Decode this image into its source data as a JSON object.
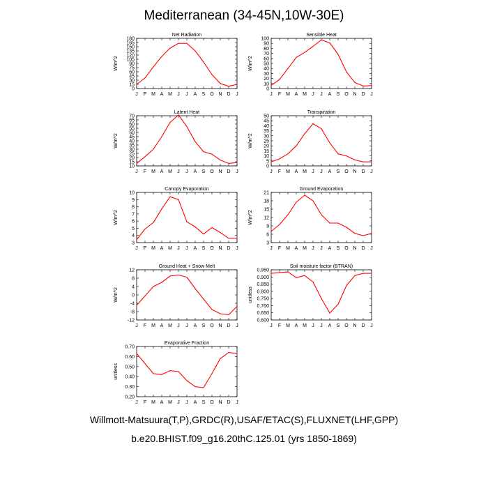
{
  "title": "Mediterranean (34-45N,10W-30E)",
  "footer": {
    "line1": "Willmott-Matsuura(T,P),GRDC(R),USAF/ETAC(S),FLUXNET(LHF,GPP)",
    "line2": "b.e20.BHIST.f09_g16.20thC.125.01 (yrs 1850-1869)"
  },
  "colors": {
    "series": "#ff0000",
    "axis": "#000000"
  },
  "chart_data": [
    {
      "type": "line",
      "title": "Net Radiation",
      "ylabel": "W/m^2",
      "categories": [
        "J",
        "F",
        "M",
        "A",
        "M",
        "J",
        "J",
        "A",
        "S",
        "O",
        "N",
        "D",
        "J"
      ],
      "ylim": [
        0,
        180
      ],
      "yticks": [
        0,
        15,
        30,
        45,
        60,
        75,
        90,
        105,
        120,
        135,
        150,
        165,
        180
      ],
      "ytick_labels": [
        "0",
        "15",
        "30",
        "45",
        "60",
        "75",
        "90",
        "105",
        "120",
        "135",
        "150",
        "165",
        "180"
      ],
      "values": [
        15,
        38,
        78,
        115,
        145,
        162,
        162,
        135,
        95,
        50,
        18,
        8,
        15
      ]
    },
    {
      "type": "line",
      "title": "Sensible Heat",
      "ylabel": "W/m^2",
      "categories": [
        "J",
        "F",
        "M",
        "A",
        "M",
        "J",
        "J",
        "A",
        "S",
        "O",
        "N",
        "D",
        "J"
      ],
      "ylim": [
        0,
        100
      ],
      "yticks": [
        0,
        10,
        20,
        30,
        40,
        50,
        60,
        70,
        80,
        90,
        100
      ],
      "ytick_labels": [
        "0",
        "10",
        "20",
        "30",
        "40",
        "50",
        "60",
        "70",
        "80",
        "90",
        "100"
      ],
      "values": [
        6,
        18,
        40,
        62,
        72,
        84,
        97,
        91,
        68,
        33,
        12,
        5,
        6
      ]
    },
    {
      "type": "line",
      "title": "Latent Heat",
      "ylabel": "W/m^2",
      "categories": [
        "J",
        "F",
        "M",
        "A",
        "M",
        "J",
        "J",
        "A",
        "S",
        "O",
        "N",
        "D",
        "J"
      ],
      "ylim": [
        10,
        70
      ],
      "yticks": [
        10,
        15,
        20,
        25,
        30,
        35,
        40,
        45,
        50,
        55,
        60,
        65,
        70
      ],
      "ytick_labels": [
        "10",
        "15",
        "20",
        "25",
        "30",
        "35",
        "40",
        "45",
        "50",
        "55",
        "60",
        "65",
        "70"
      ],
      "values": [
        13,
        21,
        30,
        45,
        62,
        71,
        57,
        39,
        27,
        24,
        17,
        13,
        14
      ]
    },
    {
      "type": "line",
      "title": "Transpiration",
      "ylabel": "W/m^2",
      "categories": [
        "J",
        "F",
        "M",
        "A",
        "M",
        "J",
        "J",
        "A",
        "S",
        "O",
        "N",
        "D",
        "J"
      ],
      "ylim": [
        0,
        50
      ],
      "yticks": [
        0,
        5,
        10,
        15,
        20,
        25,
        30,
        35,
        40,
        45,
        50
      ],
      "ytick_labels": [
        "0",
        "5",
        "10",
        "15",
        "20",
        "25",
        "30",
        "35",
        "40",
        "45",
        "50"
      ],
      "values": [
        4,
        7,
        12,
        20,
        32,
        42,
        37,
        23,
        12,
        10,
        6,
        4,
        4
      ]
    },
    {
      "type": "line",
      "title": "Canopy Evaporation",
      "ylabel": "W/m^2",
      "categories": [
        "J",
        "F",
        "M",
        "A",
        "M",
        "J",
        "J",
        "A",
        "S",
        "O",
        "N",
        "D",
        "J"
      ],
      "ylim": [
        3,
        10
      ],
      "yticks": [
        3,
        4,
        5,
        6,
        7,
        8,
        9,
        10
      ],
      "ytick_labels": [
        "3",
        "4",
        "5",
        "6",
        "7",
        "8",
        "9",
        "10"
      ],
      "values": [
        3.4,
        4.9,
        5.8,
        7.7,
        9.4,
        9.0,
        5.9,
        5.2,
        4.2,
        5.1,
        4.4,
        3.6,
        3.6
      ]
    },
    {
      "type": "line",
      "title": "Ground Evaporation",
      "ylabel": "W/m^2",
      "categories": [
        "J",
        "F",
        "M",
        "A",
        "M",
        "J",
        "J",
        "A",
        "S",
        "O",
        "N",
        "D",
        "J"
      ],
      "ylim": [
        3,
        21
      ],
      "yticks": [
        3,
        6,
        9,
        12,
        15,
        18,
        21
      ],
      "ytick_labels": [
        "3",
        "6",
        "9",
        "12",
        "15",
        "18",
        "21"
      ],
      "values": [
        7,
        9.5,
        13,
        17.5,
        20,
        18,
        13,
        10,
        10,
        8.5,
        6.3,
        5.5,
        6.3
      ]
    },
    {
      "type": "line",
      "title": "Ground Heat + Snow Melt",
      "ylabel": "W/m^2",
      "categories": [
        "J",
        "F",
        "M",
        "A",
        "M",
        "J",
        "J",
        "A",
        "S",
        "O",
        "N",
        "D",
        "J"
      ],
      "ylim": [
        -12,
        12
      ],
      "yticks": [
        -12,
        -8,
        -4,
        0,
        4,
        8,
        12
      ],
      "ytick_labels": [
        "-12",
        "-8",
        "-4",
        "0",
        "4",
        "8",
        "12"
      ],
      "values": [
        -5,
        -0.5,
        4,
        6,
        9,
        9.5,
        8.5,
        3,
        -2,
        -7,
        -9,
        -9.5,
        -5.5
      ]
    },
    {
      "type": "line",
      "title": "Soil moisture factor (BTRAN)",
      "ylabel": "unitless",
      "categories": [
        "J",
        "F",
        "M",
        "A",
        "M",
        "J",
        "J",
        "A",
        "S",
        "O",
        "N",
        "D",
        "J"
      ],
      "ylim": [
        0.6,
        0.95
      ],
      "yticks": [
        0.6,
        0.65,
        0.7,
        0.75,
        0.8,
        0.85,
        0.9,
        0.95
      ],
      "ytick_labels": [
        "0.600",
        "0.650",
        "0.700",
        "0.750",
        "0.800",
        "0.850",
        "0.900",
        "0.950"
      ],
      "values": [
        0.925,
        0.93,
        0.935,
        0.895,
        0.91,
        0.865,
        0.75,
        0.648,
        0.71,
        0.84,
        0.91,
        0.925,
        0.925
      ]
    },
    {
      "type": "line",
      "title": "Evaporative Fraction",
      "ylabel": "unitless",
      "categories": [
        "J",
        "F",
        "M",
        "A",
        "M",
        "J",
        "J",
        "A",
        "S",
        "O",
        "N",
        "D",
        "J"
      ],
      "ylim": [
        0.2,
        0.7
      ],
      "yticks": [
        0.2,
        0.3,
        0.4,
        0.5,
        0.6,
        0.7
      ],
      "ytick_labels": [
        "0.20",
        "0.30",
        "0.40",
        "0.50",
        "0.60",
        "0.70"
      ],
      "values": [
        0.63,
        0.53,
        0.43,
        0.42,
        0.46,
        0.45,
        0.36,
        0.3,
        0.29,
        0.43,
        0.58,
        0.64,
        0.63
      ]
    }
  ]
}
